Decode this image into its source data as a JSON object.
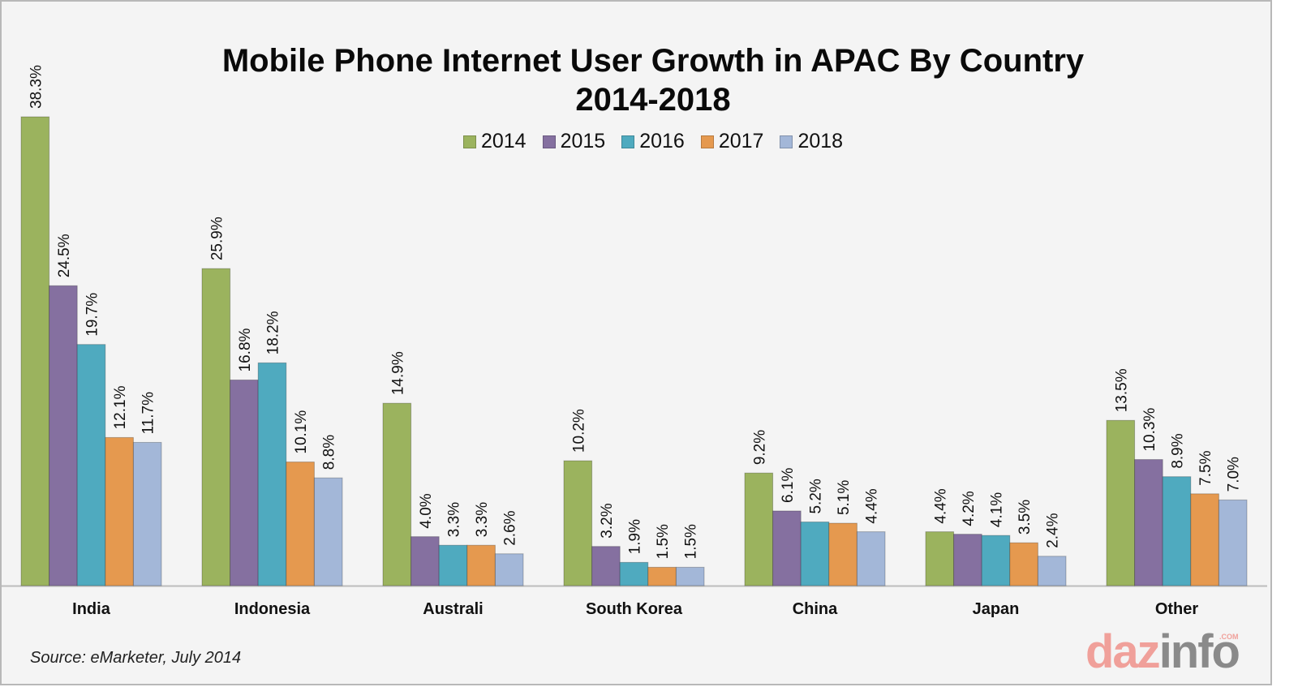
{
  "chart_data": {
    "type": "bar",
    "title": "Mobile Phone Internet User Growth in APAC By Country",
    "subtitle": "2014-2018",
    "xlabel": "",
    "ylabel": "",
    "ylim": [
      0,
      38.3
    ],
    "grid": false,
    "legend_position": "top-center",
    "categories": [
      "India",
      "Indonesia",
      "Australi",
      "South Korea",
      "China",
      "Japan",
      "Other"
    ],
    "series": [
      {
        "name": "2014",
        "color": "#9bb35e",
        "values": [
          38.3,
          25.9,
          14.9,
          10.2,
          9.2,
          4.4,
          13.5
        ]
      },
      {
        "name": "2015",
        "color": "#8570a0",
        "values": [
          24.5,
          16.8,
          4.0,
          3.2,
          6.1,
          4.2,
          10.3
        ]
      },
      {
        "name": "2016",
        "color": "#4faabf",
        "values": [
          19.7,
          18.2,
          3.3,
          1.9,
          5.2,
          4.1,
          8.9
        ]
      },
      {
        "name": "2017",
        "color": "#e5994f",
        "values": [
          12.1,
          10.1,
          3.3,
          1.5,
          5.1,
          3.5,
          7.5
        ]
      },
      {
        "name": "2018",
        "color": "#a3b7d8",
        "values": [
          11.7,
          8.8,
          2.6,
          1.5,
          4.4,
          2.4,
          7.0
        ]
      }
    ],
    "value_format": "percent_1dp"
  },
  "source": "Source: eMarketer, July 2014",
  "logo": {
    "part1": "daz",
    "part2": "info",
    "suffix": ".COM"
  }
}
